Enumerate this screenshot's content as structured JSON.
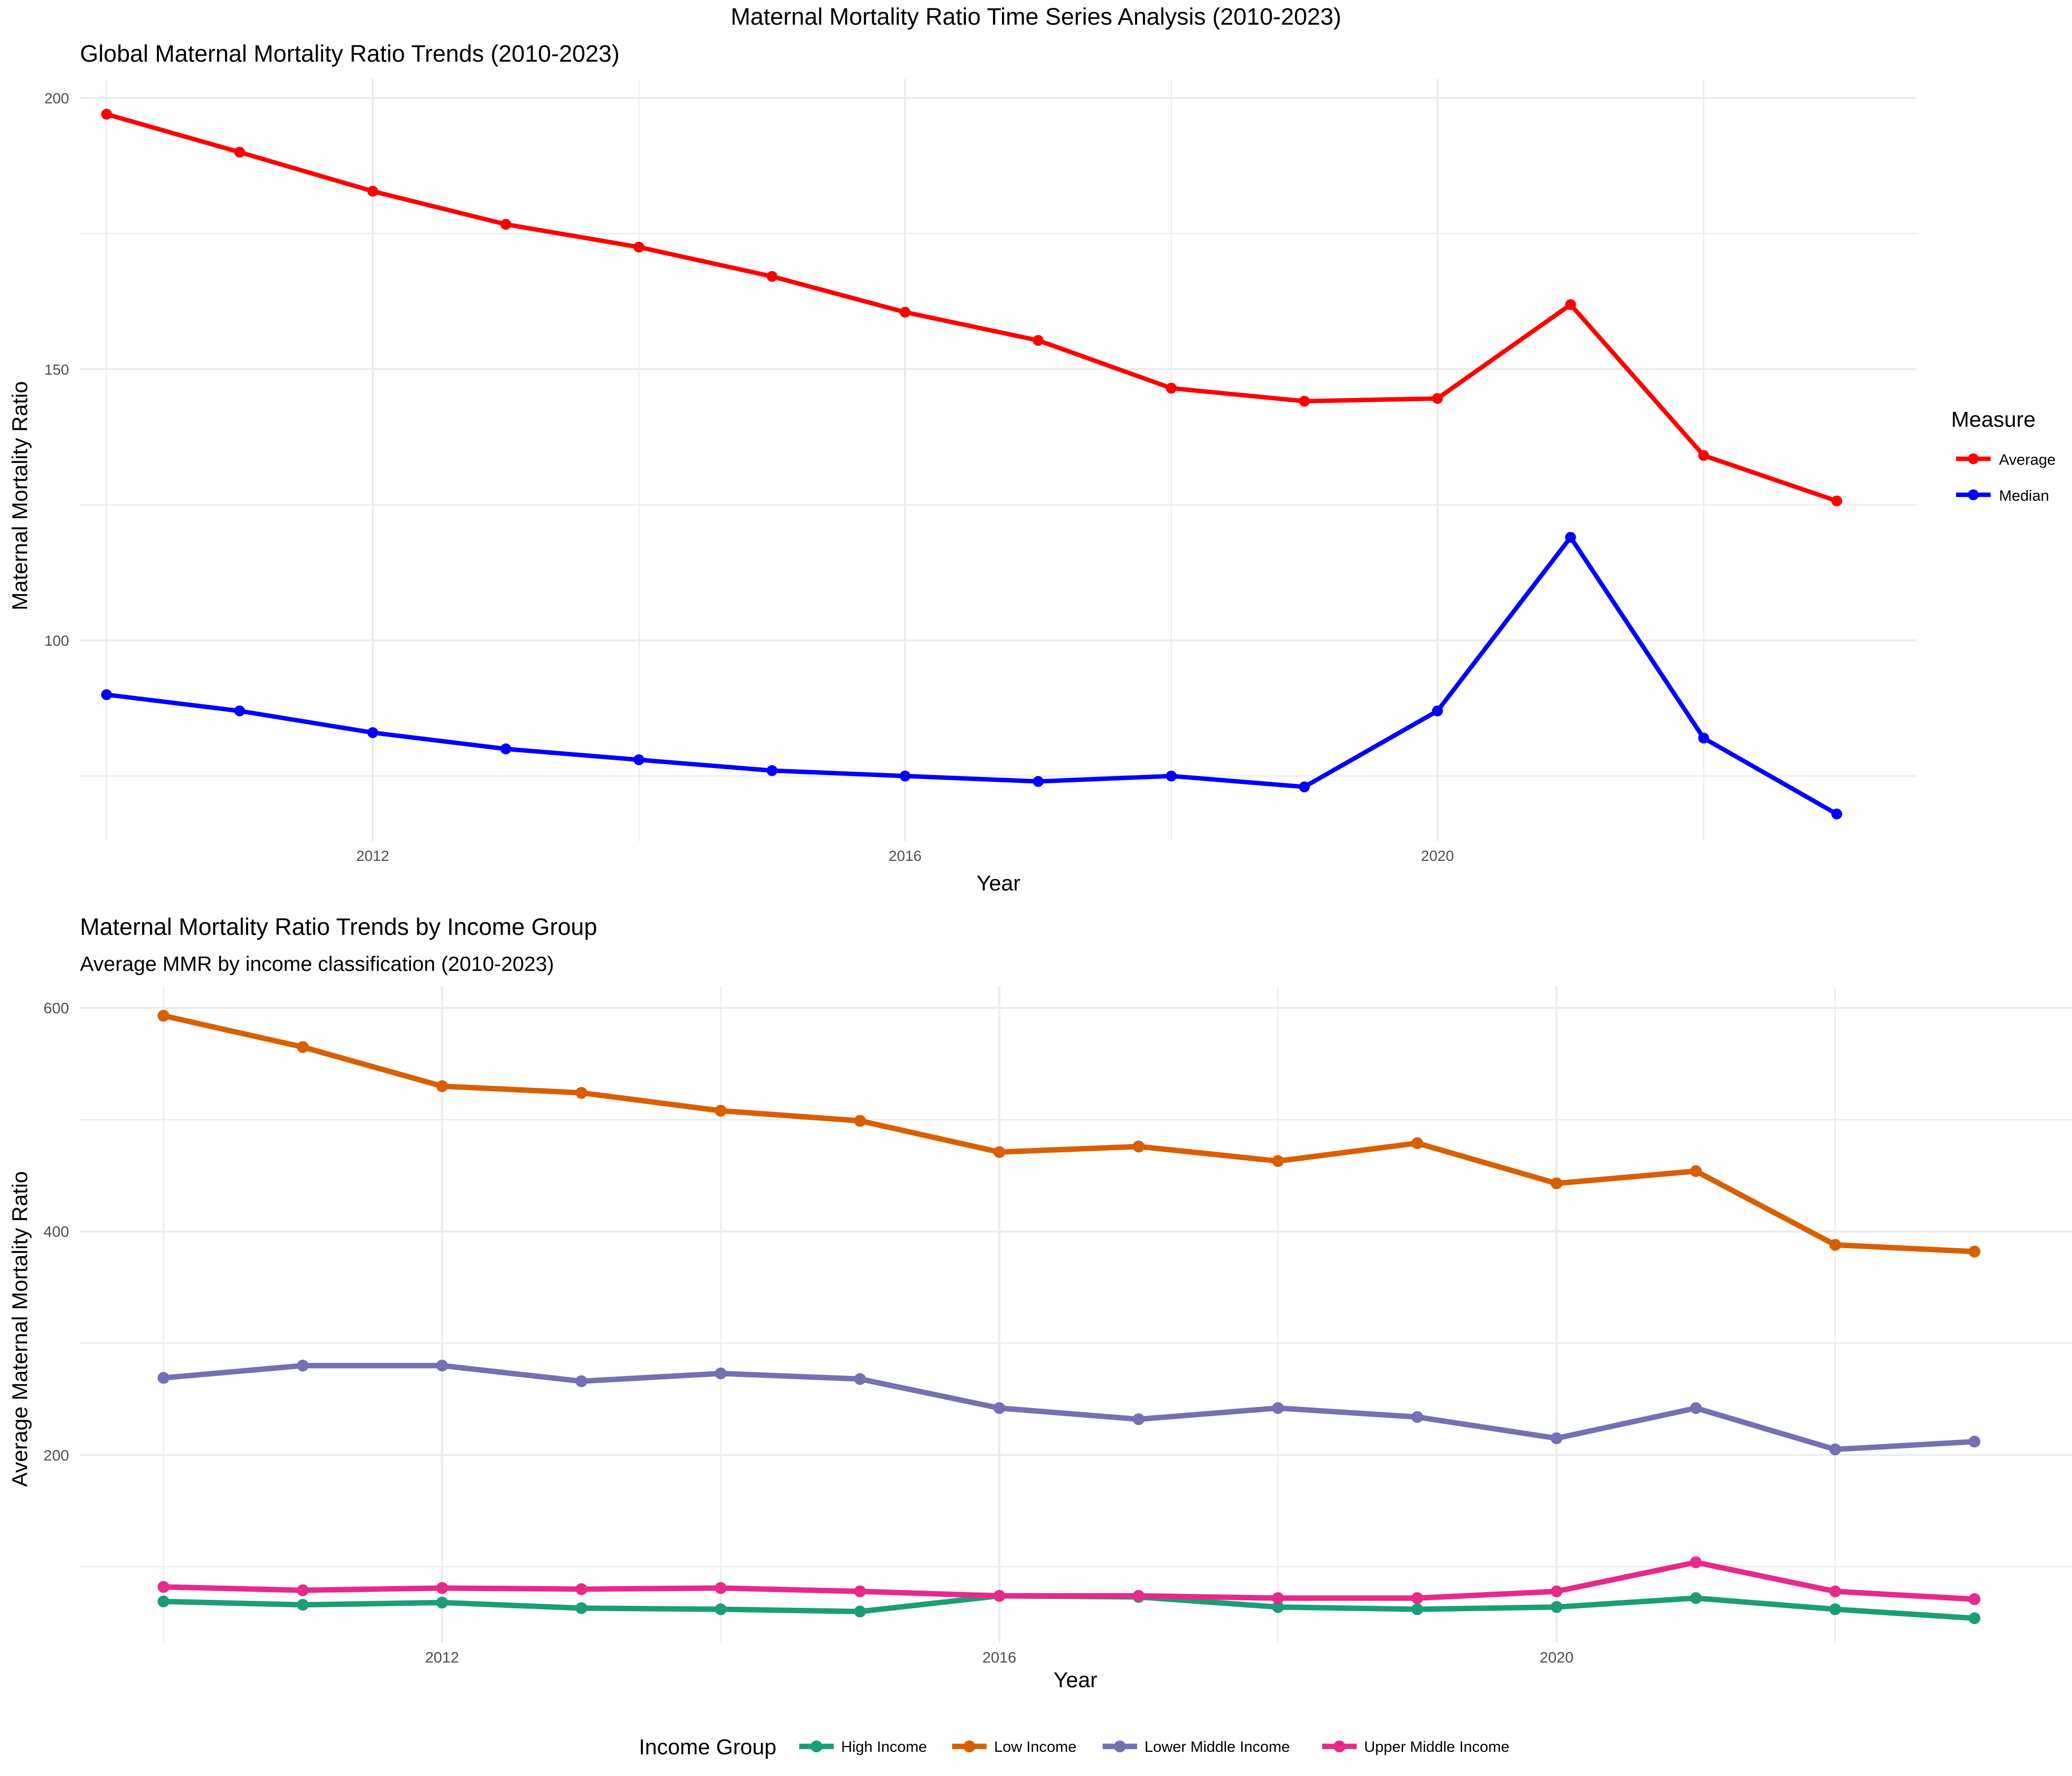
{
  "figure_title": "Maternal Mortality Ratio Time Series Analysis (2010-2023)",
  "chart_data": [
    {
      "type": "line",
      "title": "Global Maternal Mortality Ratio Trends (2010-2023)",
      "subtitle": "",
      "xlabel": "Year",
      "ylabel": "Maternal Mortality Ratio",
      "x": [
        2010,
        2011,
        2012,
        2013,
        2014,
        2015,
        2016,
        2017,
        2018,
        2019,
        2020,
        2021,
        2022,
        2023
      ],
      "x_ticks": [
        2012,
        2016,
        2020
      ],
      "x_tick_labels": [
        "2012",
        "2016",
        "2020"
      ],
      "y_ticks": [
        100,
        150,
        200
      ],
      "y_tick_labels": [
        "100",
        "150",
        "200"
      ],
      "xlim": [
        2009.8,
        2023.6
      ],
      "ylim": [
        63,
        203.5
      ],
      "grid": true,
      "legend": {
        "title": "Measure",
        "position": "right"
      },
      "series": [
        {
          "name": "Average",
          "color": "#ff0000",
          "values": [
            197,
            190,
            182.8,
            176.7,
            172.5,
            167.1,
            160.5,
            155.3,
            146.5,
            144.1,
            144.6,
            161.9,
            134.1,
            125.7
          ]
        },
        {
          "name": "Median",
          "color": "#0000ff",
          "values": [
            90,
            87,
            83,
            80,
            78,
            76,
            75,
            74,
            75,
            73,
            87,
            119,
            82,
            68
          ]
        }
      ]
    },
    {
      "type": "line",
      "title": "Maternal Mortality Ratio Trends by Income Group",
      "subtitle": "Average MMR by income classification (2010-2023)",
      "xlabel": "Year",
      "ylabel": "Average Maternal Mortality Ratio",
      "x": [
        2010,
        2011,
        2012,
        2013,
        2014,
        2015,
        2016,
        2017,
        2018,
        2019,
        2020,
        2021,
        2022,
        2023
      ],
      "x_ticks": [
        2012,
        2016,
        2020
      ],
      "x_tick_labels": [
        "2012",
        "2016",
        "2020"
      ],
      "y_ticks": [
        200,
        400,
        600
      ],
      "y_tick_labels": [
        "200",
        "400",
        "600"
      ],
      "xlim": [
        2009.4,
        2023.7
      ],
      "ylim": [
        32,
        619
      ],
      "grid": true,
      "legend": {
        "title": "Income Group",
        "position": "bottom"
      },
      "series": [
        {
          "name": "High Income",
          "color": "#1b9e77",
          "values": [
            69,
            66,
            68,
            63,
            62,
            60,
            74,
            73,
            64,
            62,
            64,
            72,
            62,
            54
          ]
        },
        {
          "name": "Low Income",
          "color": "#d95f02",
          "values": [
            593,
            565,
            530,
            524,
            508,
            499,
            471,
            476,
            463,
            479,
            443,
            454,
            388,
            382
          ]
        },
        {
          "name": "Lower Middle Income",
          "color": "#7570b3",
          "values": [
            269,
            280,
            280,
            266,
            273,
            268,
            242,
            232,
            242,
            234,
            215,
            242,
            205,
            212
          ]
        },
        {
          "name": "Upper Middle Income",
          "color": "#e7298a",
          "values": [
            82,
            79,
            81,
            80,
            81,
            78,
            74,
            74,
            72,
            72,
            78,
            104,
            78,
            71
          ]
        }
      ]
    }
  ]
}
